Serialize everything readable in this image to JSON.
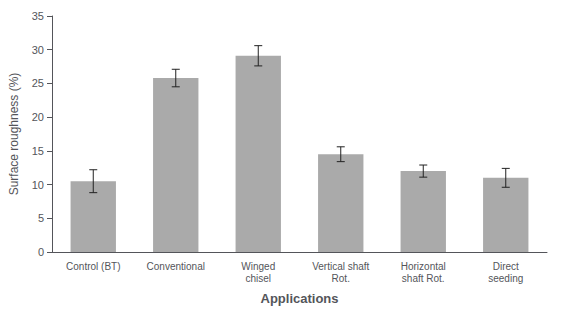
{
  "chart_data": {
    "type": "bar",
    "categories": [
      "Control (BT)",
      "Conventional",
      "Winged\nchisel",
      "Vertical shaft\nRot.",
      "Horizontal\nshaft Rot.",
      "Direct\nseeding"
    ],
    "values": [
      10.5,
      25.8,
      29.1,
      14.5,
      12.0,
      11.0
    ],
    "errors": [
      1.7,
      1.3,
      1.5,
      1.1,
      0.9,
      1.4
    ],
    "color": "#aaaaaa",
    "xlabel": "Applications",
    "ylabel": "Surface roughness (%)",
    "ylim": [
      0,
      35
    ],
    "yticks": [
      0,
      5,
      10,
      15,
      20,
      25,
      30,
      35
    ],
    "grid": false
  }
}
